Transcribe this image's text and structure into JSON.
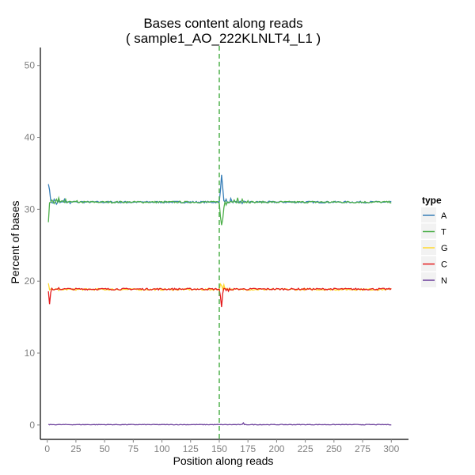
{
  "chart_data": {
    "type": "line",
    "title_line1": "Bases content along reads",
    "title_line2": "( sample1_AO_222KLNLT4_L1 )",
    "xlabel": "Position along reads",
    "ylabel": "Percent of bases",
    "xlim": [
      -6,
      315
    ],
    "ylim": [
      -2,
      52.5
    ],
    "xticks": [
      0,
      25,
      50,
      75,
      100,
      125,
      150,
      175,
      200,
      225,
      250,
      275,
      300
    ],
    "yticks": [
      0,
      10,
      20,
      30,
      40,
      50
    ],
    "grid": false,
    "vline": {
      "x": 150,
      "color": "#4daf4a",
      "style": "dashed"
    },
    "legend": {
      "title": "type",
      "placement": "right"
    },
    "series": [
      {
        "name": "A",
        "color": "#377eb8",
        "base": 31.0,
        "points": [
          [
            1,
            33.5
          ],
          [
            2,
            32.7
          ],
          [
            3,
            31.2
          ],
          [
            4,
            30.9
          ],
          [
            6,
            31.4
          ],
          [
            8,
            30.7
          ],
          [
            10,
            31.2
          ],
          [
            12,
            31.0
          ],
          [
            15,
            31.4
          ],
          [
            18,
            31.0
          ],
          [
            20,
            30.8
          ],
          [
            23,
            31.1
          ],
          [
            26,
            31.0
          ],
          [
            30,
            31.1
          ]
        ]
      },
      {
        "name": "T",
        "color": "#4daf4a",
        "base": 31.0,
        "points": [
          [
            1,
            28.2
          ],
          [
            2,
            30.9
          ],
          [
            3,
            31.0
          ],
          [
            4,
            31.3
          ],
          [
            6,
            30.8
          ],
          [
            8,
            31.4
          ],
          [
            10,
            31.6
          ],
          [
            13,
            31.2
          ],
          [
            16,
            31.4
          ],
          [
            19,
            31.1
          ],
          [
            22,
            31.0
          ],
          [
            26,
            31.2
          ],
          [
            30,
            31.0
          ]
        ]
      },
      {
        "name": "G",
        "color": "#ffd92f",
        "base": 18.85,
        "points": [
          [
            1,
            19.7
          ],
          [
            2,
            18.8
          ],
          [
            3,
            18.9
          ],
          [
            4,
            19.0
          ],
          [
            6,
            18.8
          ],
          [
            8,
            18.9
          ],
          [
            10,
            18.7
          ],
          [
            14,
            18.8
          ],
          [
            18,
            18.9
          ],
          [
            22,
            18.8
          ]
        ]
      },
      {
        "name": "C",
        "color": "#e41a1c",
        "base": 18.9,
        "points": [
          [
            1,
            18.6
          ],
          [
            2,
            16.8
          ],
          [
            3,
            18.4
          ],
          [
            4,
            19.0
          ],
          [
            6,
            18.8
          ],
          [
            8,
            18.9
          ],
          [
            10,
            19.1
          ],
          [
            14,
            18.9
          ],
          [
            18,
            19.0
          ],
          [
            22,
            18.9
          ]
        ]
      },
      {
        "name": "N",
        "color": "#6a3d9a",
        "base": 0.05,
        "points": [
          [
            1,
            0.1
          ],
          [
            5,
            0.05
          ],
          [
            171,
            0.3
          ],
          [
            172,
            0.05
          ]
        ]
      }
    ],
    "second_read_points": {
      "A": [
        [
          151,
          32.6
        ],
        [
          152,
          34.8
        ],
        [
          153,
          33.0
        ],
        [
          154,
          31.2
        ],
        [
          156,
          31.4
        ],
        [
          158,
          31.0
        ],
        [
          160,
          31.5
        ],
        [
          163,
          31.2
        ],
        [
          166,
          31.0
        ],
        [
          170,
          30.8
        ],
        [
          175,
          31.1
        ],
        [
          180,
          31.0
        ]
      ],
      "T": [
        [
          151,
          29.0
        ],
        [
          152,
          27.8
        ],
        [
          153,
          28.6
        ],
        [
          154,
          30.2
        ],
        [
          156,
          30.6
        ],
        [
          158,
          30.9
        ],
        [
          160,
          31.1
        ],
        [
          163,
          31.3
        ],
        [
          166,
          31.6
        ],
        [
          170,
          31.4
        ],
        [
          175,
          31.2
        ],
        [
          180,
          31.0
        ]
      ],
      "G": [
        [
          151,
          19.6
        ],
        [
          152,
          19.4
        ],
        [
          153,
          18.9
        ],
        [
          154,
          19.5
        ],
        [
          156,
          19.0
        ],
        [
          158,
          18.9
        ],
        [
          160,
          18.8
        ],
        [
          164,
          18.9
        ],
        [
          168,
          18.8
        ]
      ],
      "C": [
        [
          151,
          17.9
        ],
        [
          152,
          16.4
        ],
        [
          153,
          18.3
        ],
        [
          154,
          19.0
        ],
        [
          156,
          18.7
        ],
        [
          158,
          18.6
        ],
        [
          160,
          18.8
        ],
        [
          164,
          18.9
        ],
        [
          168,
          18.9
        ]
      ]
    }
  }
}
